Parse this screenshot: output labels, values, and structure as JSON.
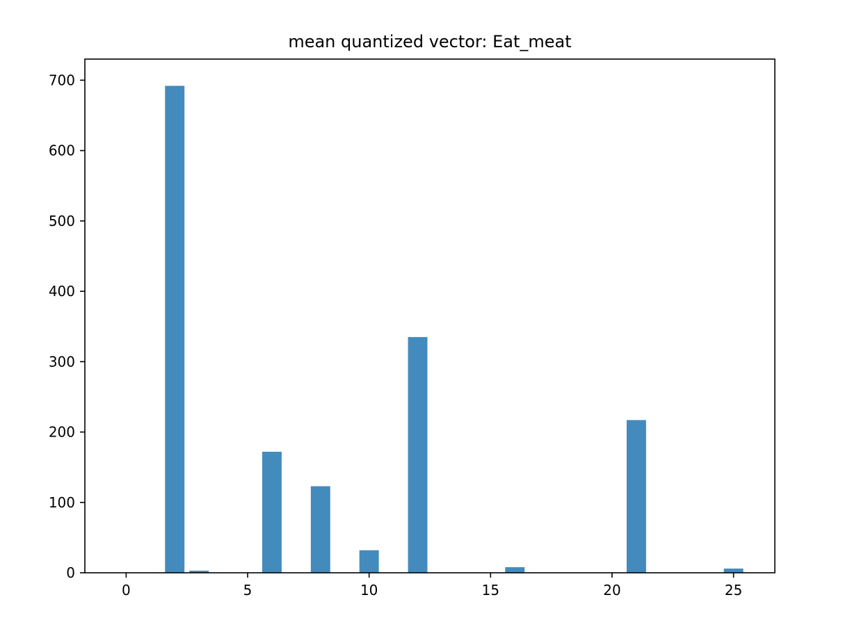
{
  "chart_data": {
    "type": "bar",
    "title": "mean quantized vector: Eat_meat",
    "xlabel": "",
    "ylabel": "",
    "xlim": [
      -1.7,
      26.7
    ],
    "ylim": [
      0,
      730
    ],
    "xticks": [
      0,
      5,
      10,
      15,
      20,
      25
    ],
    "yticks": [
      0,
      100,
      200,
      300,
      400,
      500,
      600,
      700
    ],
    "bar_width": 0.8,
    "bar_color": "#438bbd",
    "grid": false,
    "legend": "none",
    "bars": [
      {
        "x": 2,
        "value": 692
      },
      {
        "x": 3,
        "value": 3
      },
      {
        "x": 6,
        "value": 172
      },
      {
        "x": 8,
        "value": 123
      },
      {
        "x": 10,
        "value": 32
      },
      {
        "x": 12,
        "value": 335
      },
      {
        "x": 16,
        "value": 8
      },
      {
        "x": 21,
        "value": 217
      },
      {
        "x": 25,
        "value": 6
      }
    ]
  }
}
